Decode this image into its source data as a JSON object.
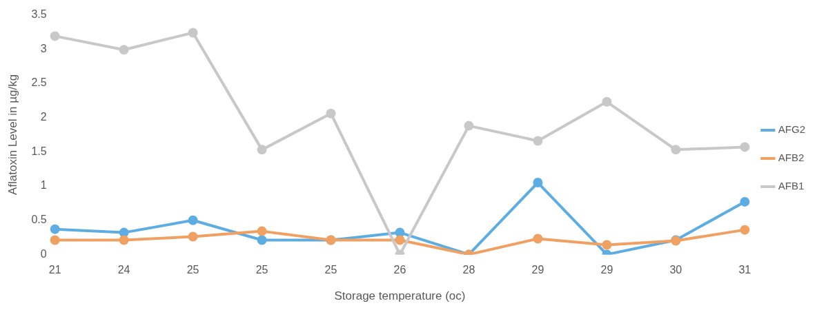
{
  "chart_data": {
    "type": "line",
    "xlabel": "Storage temperature (oc)",
    "ylabel": "Aflatoxin Level in µg/kg",
    "categories": [
      "21",
      "24",
      "25",
      "25",
      "25",
      "26",
      "28",
      "29",
      "29",
      "30",
      "31"
    ],
    "series": [
      {
        "name": "AFG2",
        "color": "#5dade2",
        "values": [
          0.37,
          0.32,
          0.5,
          0.21,
          0.21,
          0.32,
          0,
          1.05,
          0,
          0.21,
          0.77
        ]
      },
      {
        "name": "AFB2",
        "color": "#f0a061",
        "values": [
          0.21,
          0.21,
          0.26,
          0.34,
          0.21,
          0.21,
          0,
          0.23,
          0.14,
          0.2,
          0.36
        ]
      },
      {
        "name": "AFB1",
        "color": "#c8c8c8",
        "values": [
          3.19,
          2.99,
          3.24,
          1.53,
          2.06,
          0,
          1.88,
          1.66,
          2.23,
          1.53,
          1.57
        ]
      }
    ],
    "ylim": [
      0,
      3.5
    ],
    "yticks": [
      0,
      0.5,
      1,
      1.5,
      2,
      2.5,
      3,
      3.5
    ],
    "grid": false,
    "legend": "right",
    "marker": "circle",
    "line_style": "solid"
  }
}
